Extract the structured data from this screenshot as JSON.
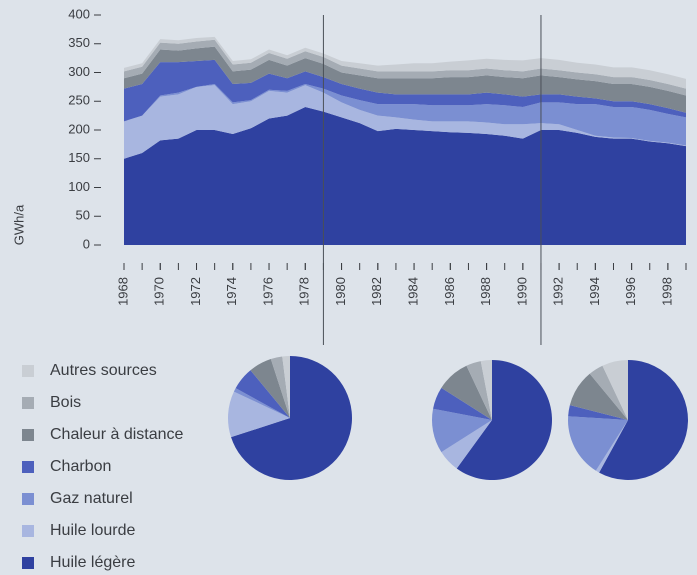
{
  "chart_data": [
    {
      "type": "area",
      "ylabel": "GWh/a",
      "x": [
        1968,
        1969,
        1970,
        1971,
        1972,
        1973,
        1974,
        1975,
        1976,
        1977,
        1978,
        1979,
        1980,
        1981,
        1982,
        1983,
        1984,
        1985,
        1986,
        1987,
        1988,
        1989,
        1990,
        1991,
        1992,
        1993,
        1994,
        1995,
        1996,
        1997,
        1998,
        1999
      ],
      "xlim": [
        1968,
        1999
      ],
      "xticks": [
        1968,
        1970,
        1972,
        1974,
        1976,
        1978,
        1980,
        1982,
        1984,
        1986,
        1988,
        1990,
        1992,
        1994,
        1996,
        1998
      ],
      "xlines": [
        1979,
        1991
      ],
      "ylim": [
        0,
        400
      ],
      "yticks": [
        0,
        50,
        100,
        150,
        200,
        250,
        300,
        350,
        400
      ],
      "legend": "bottom-left",
      "series": [
        {
          "name": "Huile légère",
          "color": "#2f41a0",
          "values": [
            150,
            160,
            182,
            185,
            200,
            200,
            193,
            203,
            220,
            225,
            240,
            232,
            222,
            212,
            198,
            202,
            200,
            198,
            196,
            195,
            193,
            190,
            185,
            200,
            200,
            195,
            188,
            185,
            185,
            180,
            177,
            172
          ]
        },
        {
          "name": "Huile lourde",
          "color": "#a8b6e0",
          "values": [
            65,
            65,
            76,
            77,
            75,
            78,
            52,
            47,
            48,
            40,
            38,
            33,
            26,
            23,
            27,
            20,
            18,
            17,
            19,
            20,
            20,
            20,
            25,
            12,
            10,
            5,
            2,
            2,
            1,
            1,
            1,
            1
          ]
        },
        {
          "name": "Gaz naturel",
          "color": "#7b8fd2",
          "values": [
            0,
            0,
            2,
            3,
            0,
            2,
            3,
            2,
            2,
            3,
            2,
            7,
            12,
            17,
            20,
            23,
            27,
            28,
            28,
            28,
            32,
            33,
            30,
            36,
            38,
            45,
            55,
            53,
            54,
            54,
            50,
            49
          ]
        },
        {
          "name": "Charbon",
          "color": "#4d60bd",
          "values": [
            57,
            55,
            58,
            53,
            45,
            42,
            32,
            30,
            28,
            22,
            22,
            20,
            20,
            20,
            20,
            17,
            17,
            19,
            19,
            19,
            20,
            19,
            18,
            14,
            14,
            13,
            10,
            10,
            10,
            10,
            10,
            8
          ]
        },
        {
          "name": "Chaleur à distance",
          "color": "#7d868f",
          "values": [
            18,
            18,
            22,
            20,
            22,
            23,
            22,
            23,
            24,
            22,
            23,
            23,
            20,
            23,
            25,
            28,
            28,
            28,
            30,
            30,
            30,
            30,
            32,
            33,
            30,
            30,
            30,
            30,
            30,
            30,
            30,
            30
          ]
        },
        {
          "name": "Bois",
          "color": "#a5acb4",
          "values": [
            12,
            12,
            12,
            12,
            12,
            12,
            12,
            12,
            12,
            12,
            12,
            12,
            12,
            12,
            12,
            12,
            12,
            12,
            12,
            12,
            12,
            12,
            12,
            12,
            12,
            12,
            12,
            12,
            12,
            12,
            12,
            12
          ]
        },
        {
          "name": "Autres sources",
          "color": "#c9ced4",
          "values": [
            6,
            6,
            6,
            6,
            6,
            5,
            6,
            6,
            6,
            6,
            6,
            6,
            8,
            9,
            10,
            12,
            14,
            14,
            15,
            17,
            17,
            18,
            19,
            18,
            18,
            17,
            17,
            17,
            17,
            17,
            17,
            17
          ]
        }
      ]
    },
    {
      "type": "pie",
      "values": [
        70,
        12,
        1,
        6,
        6,
        3,
        2
      ]
    },
    {
      "type": "pie",
      "values": [
        60,
        6,
        12,
        6,
        9,
        4,
        3
      ]
    },
    {
      "type": "pie",
      "values": [
        58,
        1,
        17,
        3,
        10,
        4,
        7
      ]
    }
  ]
}
